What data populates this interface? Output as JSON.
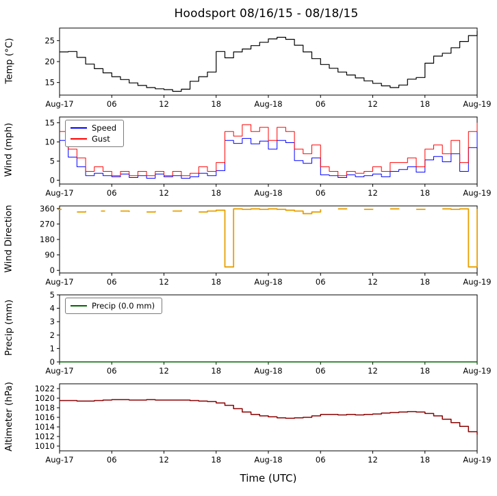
{
  "title": "Hoodsport 08/16/15 - 08/18/15",
  "x": {
    "xlabel": "Time (UTC)",
    "xlim": [
      0,
      48
    ],
    "tick_hours": [
      0,
      6,
      12,
      18,
      24,
      30,
      36,
      42,
      48
    ],
    "tick_labels": [
      "Aug-17",
      "06",
      "12",
      "18",
      "Aug-18",
      "06",
      "12",
      "18",
      "Aug-19"
    ]
  },
  "chart_data": [
    {
      "type": "line",
      "id": "temperature",
      "ylabel": "Temp (°C)",
      "ylim": [
        12,
        28
      ],
      "yticks": [
        15,
        20,
        25
      ],
      "series": [
        {
          "name": "Temp",
          "color": "#000000",
          "width": 1.2,
          "values": [
            22.3,
            22.4,
            21.0,
            19.4,
            18.3,
            17.3,
            16.4,
            15.7,
            14.9,
            14.3,
            13.8,
            13.5,
            13.3,
            12.9,
            13.4,
            15.3,
            16.4,
            17.5,
            22.4,
            20.9,
            22.3,
            23.0,
            23.8,
            24.6,
            25.4,
            25.8,
            25.3,
            23.9,
            22.3,
            20.7,
            19.3,
            18.4,
            17.5,
            16.8,
            16.1,
            15.4,
            14.8,
            14.2,
            13.8,
            14.4,
            15.8,
            16.2,
            19.6,
            21.3,
            22.0,
            23.3,
            24.8,
            26.2,
            27.3
          ]
        }
      ]
    },
    {
      "type": "line",
      "id": "wind",
      "ylabel": "Wind (mph)",
      "ylim": [
        -1,
        16.5
      ],
      "yticks": [
        0,
        5,
        10,
        15
      ],
      "legend": [
        "Speed",
        "Gust"
      ],
      "series": [
        {
          "name": "Speed",
          "color": "#0000ff",
          "width": 1,
          "values": [
            10.4,
            6.0,
            3.5,
            1.2,
            1.8,
            1.2,
            0.9,
            1.6,
            0.7,
            1.2,
            0.5,
            1.6,
            0.9,
            1.2,
            0.5,
            0.9,
            1.8,
            1.2,
            2.5,
            10.4,
            9.6,
            10.9,
            9.5,
            10.2,
            8.1,
            10.4,
            9.8,
            5.1,
            4.4,
            5.8,
            1.4,
            1.2,
            0.7,
            1.4,
            0.9,
            1.2,
            1.6,
            0.9,
            2.3,
            2.8,
            3.5,
            2.1,
            5.3,
            6.2,
            4.8,
            6.9,
            2.3,
            8.5,
            12.8
          ]
        },
        {
          "name": "Gust",
          "color": "#ff0000",
          "width": 1,
          "values": [
            12.7,
            8.1,
            5.8,
            2.3,
            3.5,
            2.3,
            1.2,
            2.3,
            1.2,
            2.3,
            1.2,
            2.3,
            1.2,
            2.3,
            1.2,
            1.8,
            3.5,
            2.3,
            4.6,
            12.7,
            11.5,
            14.5,
            12.7,
            13.8,
            10.4,
            13.8,
            12.7,
            8.1,
            6.9,
            9.2,
            3.5,
            2.3,
            1.2,
            2.3,
            1.8,
            2.3,
            3.5,
            2.3,
            4.6,
            4.6,
            5.8,
            3.5,
            8.1,
            9.2,
            6.9,
            10.4,
            4.6,
            12.7,
            15.0
          ]
        }
      ]
    },
    {
      "type": "line",
      "id": "wind-direction",
      "ylabel": "Wind Direction",
      "ylim": [
        -15,
        375
      ],
      "yticks": [
        0,
        90,
        180,
        270,
        360
      ],
      "series": [
        {
          "name": "Direction",
          "color": "#e8a000",
          "width": 1.8,
          "values": [
            355,
            null,
            340,
            345,
            null,
            345,
            null,
            345,
            340,
            null,
            340,
            345,
            null,
            345,
            350,
            null,
            340,
            345,
            350,
            20,
            358,
            355,
            358,
            355,
            358,
            355,
            350,
            345,
            330,
            340,
            355,
            null,
            358,
            355,
            null,
            355,
            358,
            null,
            358,
            355,
            null,
            355,
            358,
            null,
            358,
            355,
            358,
            20,
            358
          ]
        }
      ]
    },
    {
      "type": "line",
      "id": "precip",
      "ylabel": "Precip (mm)",
      "ylim": [
        0,
        5
      ],
      "yticks": [
        0,
        1,
        2,
        3,
        4,
        5
      ],
      "legend": [
        "Precip (0.0 mm)"
      ],
      "series": [
        {
          "name": "Precip (0.0 mm)",
          "color": "#006400",
          "width": 1.5,
          "values": [
            0,
            0,
            0,
            0,
            0,
            0,
            0,
            0,
            0,
            0,
            0,
            0,
            0,
            0,
            0,
            0,
            0,
            0,
            0,
            0,
            0,
            0,
            0,
            0,
            0,
            0,
            0,
            0,
            0,
            0,
            0,
            0,
            0,
            0,
            0,
            0,
            0,
            0,
            0,
            0,
            0,
            0,
            0,
            0,
            0,
            0,
            0,
            0,
            0
          ]
        }
      ]
    },
    {
      "type": "line",
      "id": "altimeter",
      "ylabel": "Altimeter (hPa)",
      "ylim": [
        1009,
        1023
      ],
      "yticks": [
        1010,
        1012,
        1014,
        1016,
        1018,
        1020,
        1022
      ],
      "series": [
        {
          "name": "Altimeter",
          "color": "#8b0000",
          "width": 1.5,
          "values": [
            1019.5,
            1019.5,
            1019.4,
            1019.4,
            1019.5,
            1019.6,
            1019.7,
            1019.7,
            1019.6,
            1019.6,
            1019.7,
            1019.6,
            1019.6,
            1019.6,
            1019.6,
            1019.5,
            1019.4,
            1019.3,
            1019.0,
            1018.5,
            1017.8,
            1017.1,
            1016.6,
            1016.3,
            1016.1,
            1015.9,
            1015.8,
            1015.9,
            1016.0,
            1016.3,
            1016.6,
            1016.6,
            1016.5,
            1016.6,
            1016.5,
            1016.6,
            1016.7,
            1016.9,
            1017.0,
            1017.1,
            1017.2,
            1017.1,
            1016.8,
            1016.3,
            1015.6,
            1014.9,
            1014.1,
            1013.0,
            1012.4
          ]
        }
      ]
    }
  ]
}
